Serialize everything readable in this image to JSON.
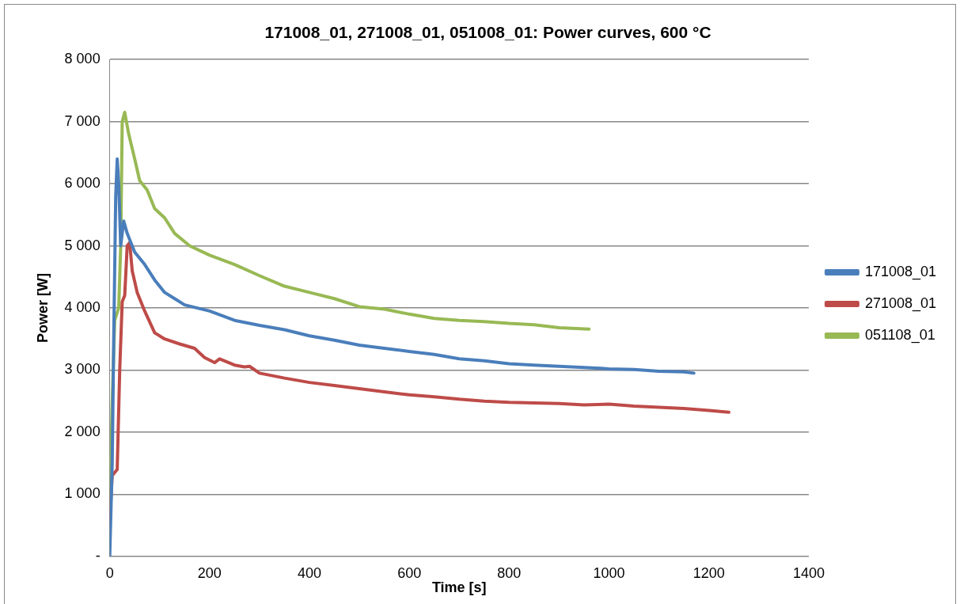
{
  "chart_data": {
    "type": "line",
    "title": "171008_01, 271008_01, 051008_01: Power curves, 600 °C",
    "xlabel": "Time [s]",
    "ylabel": "Power [W]",
    "xlim": [
      0,
      1400
    ],
    "xticks": [
      0,
      200,
      400,
      600,
      800,
      1000,
      1200,
      1400
    ],
    "ylim": [
      0,
      8000
    ],
    "yticks": [
      {
        "value": 0,
        "label": "-"
      },
      {
        "value": 1000,
        "label": "1 000"
      },
      {
        "value": 2000,
        "label": "2 000"
      },
      {
        "value": 3000,
        "label": "3 000"
      },
      {
        "value": 4000,
        "label": "4 000"
      },
      {
        "value": 5000,
        "label": "5 000"
      },
      {
        "value": 6000,
        "label": "6 000"
      },
      {
        "value": 7000,
        "label": "7 000"
      },
      {
        "value": 8000,
        "label": "8 000"
      }
    ],
    "grid": "y",
    "legend": "right",
    "marker": "none",
    "line_style": "solid",
    "series": [
      {
        "name": "171008_01",
        "color": "#4a7ebb",
        "x": [
          0,
          5,
          8,
          12,
          15,
          18,
          22,
          28,
          35,
          50,
          70,
          90,
          110,
          130,
          150,
          200,
          250,
          300,
          350,
          400,
          450,
          500,
          550,
          600,
          650,
          700,
          750,
          800,
          850,
          900,
          950,
          1000,
          1050,
          1100,
          1150,
          1170
        ],
        "values": [
          0,
          1500,
          3500,
          5800,
          6400,
          6000,
          5000,
          5400,
          5200,
          4900,
          4700,
          4450,
          4250,
          4150,
          4050,
          3950,
          3800,
          3720,
          3650,
          3550,
          3480,
          3400,
          3350,
          3300,
          3250,
          3180,
          3150,
          3100,
          3080,
          3060,
          3040,
          3020,
          3010,
          2980,
          2970,
          2950
        ]
      },
      {
        "name": "271008_01",
        "color": "#be4b48",
        "x": [
          0,
          5,
          15,
          20,
          25,
          30,
          35,
          40,
          45,
          55,
          70,
          90,
          110,
          140,
          170,
          190,
          210,
          220,
          250,
          270,
          280,
          300,
          350,
          400,
          450,
          500,
          550,
          600,
          650,
          700,
          750,
          800,
          850,
          900,
          950,
          1000,
          1050,
          1100,
          1150,
          1200,
          1240
        ],
        "values": [
          600,
          1300,
          1400,
          3000,
          4100,
          4200,
          5000,
          5050,
          4600,
          4250,
          3950,
          3600,
          3500,
          3420,
          3350,
          3200,
          3120,
          3180,
          3080,
          3050,
          3060,
          2950,
          2870,
          2800,
          2750,
          2700,
          2650,
          2600,
          2570,
          2530,
          2500,
          2480,
          2470,
          2460,
          2440,
          2450,
          2420,
          2400,
          2380,
          2350,
          2320
        ]
      },
      {
        "name": "051108_01",
        "color": "#98b954",
        "x": [
          0,
          5,
          10,
          18,
          22,
          25,
          30,
          38,
          50,
          60,
          75,
          90,
          110,
          130,
          160,
          200,
          250,
          300,
          350,
          400,
          450,
          500,
          550,
          600,
          650,
          700,
          750,
          800,
          850,
          900,
          960
        ],
        "values": [
          800,
          2500,
          3800,
          4000,
          5000,
          7000,
          7150,
          6800,
          6400,
          6050,
          5900,
          5600,
          5450,
          5200,
          5000,
          4850,
          4700,
          4520,
          4350,
          4250,
          4150,
          4020,
          3980,
          3900,
          3830,
          3800,
          3780,
          3750,
          3730,
          3680,
          3660
        ]
      }
    ]
  }
}
